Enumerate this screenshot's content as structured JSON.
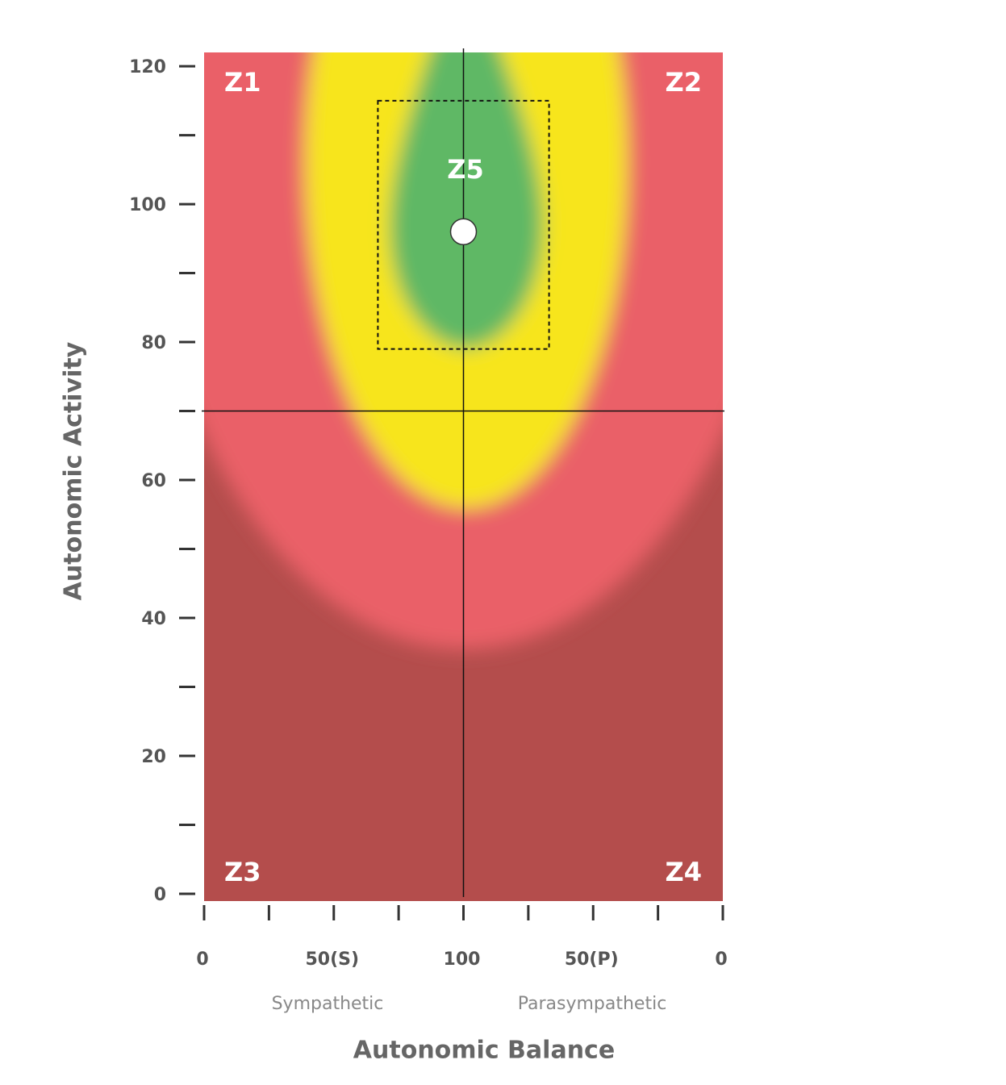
{
  "chart_data": {
    "type": "scatter",
    "x_label": "Autonomic Balance",
    "y_label": "Autonomic Activity",
    "x_side_labels": [
      "Sympathetic",
      "Parasympathetic"
    ],
    "zones": [
      "Z1",
      "Z2",
      "Z3",
      "Z4",
      "Z5"
    ],
    "xlim": [
      0,
      200
    ],
    "xticks": [
      0,
      {
        "value": 50,
        "label": "50(S)"
      },
      100,
      {
        "value": 150,
        "label": "50(P)"
      },
      {
        "value": 200,
        "label": "0"
      }
    ],
    "xminor_ticks": [
      25,
      75,
      125,
      175
    ],
    "ylim": [
      -1,
      122
    ],
    "yticks": [
      0,
      20,
      40,
      60,
      80,
      100,
      120
    ],
    "yminor_ticks": [
      10,
      30,
      50,
      70,
      90,
      110
    ],
    "crosshair": {
      "x": 100,
      "y": 70
    },
    "target_box": {
      "x": [
        67,
        133
      ],
      "y": [
        79,
        115
      ]
    },
    "x": [
      100
    ],
    "values": [
      96
    ],
    "color": "#ffffff"
  }
}
